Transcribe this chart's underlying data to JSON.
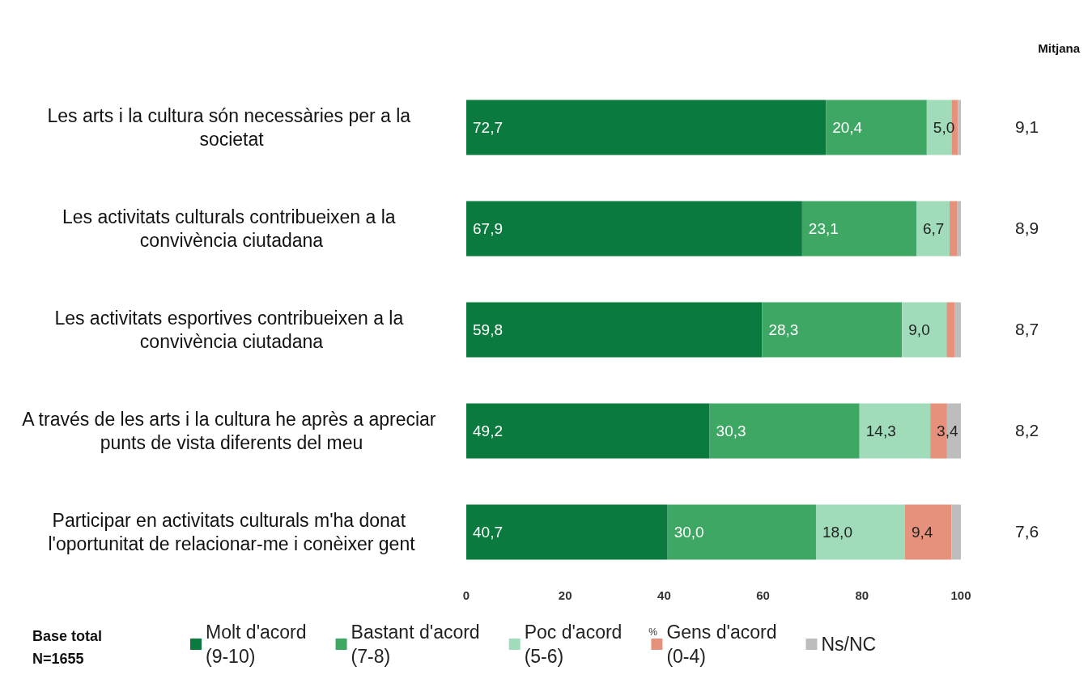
{
  "chart_data": {
    "type": "bar",
    "orientation": "horizontal",
    "stacked": true,
    "categories": [
      "Les arts i la cultura són necessàries per a la societat",
      "Les activitats culturals contribueixen a la convivència ciutadana",
      "Les activitats esportives contribueixen a la convivència ciutadana",
      "A través de les arts i la cultura he après a apreciar punts de vista diferents del meu",
      "Participar en activitats culturals m'ha donat l'oportunitat de relacionar-me i conèixer gent"
    ],
    "series": [
      {
        "name": "Molt d'acord\n(9-10)",
        "color": "#0b7a3f",
        "values": [
          72.7,
          67.9,
          59.8,
          49.2,
          40.7
        ],
        "value_labels": [
          "72,7",
          "67,9",
          "59,8",
          "49,2",
          "40,7"
        ]
      },
      {
        "name": "Bastant d'acord\n(7-8)",
        "color": "#3ea764",
        "values": [
          20.4,
          23.1,
          28.3,
          30.3,
          30.0
        ],
        "value_labels": [
          "20,4",
          "23,1",
          "28,3",
          "30,3",
          "30,0"
        ]
      },
      {
        "name": "Poc d'acord\n(5-6)",
        "color": "#a0dcb9",
        "values": [
          5.0,
          6.7,
          9.0,
          14.3,
          18.0
        ],
        "value_labels": [
          "5,0",
          "6,7",
          "9,0",
          "14,3",
          "18,0"
        ]
      },
      {
        "name": "Gens d'acord\n(0-4)",
        "color": "#e6917b",
        "values": [
          1.3,
          1.6,
          1.7,
          3.4,
          9.4
        ],
        "value_labels": [
          null,
          null,
          null,
          "3,4",
          "9,4"
        ]
      },
      {
        "name": "Ns/NC",
        "color": "#bdbdbd",
        "values": [
          0.6,
          0.7,
          1.2,
          2.8,
          1.9
        ],
        "value_labels": [
          null,
          null,
          null,
          null,
          null
        ]
      }
    ],
    "xlim": [
      0,
      100
    ],
    "xticks": [
      0,
      20,
      40,
      60,
      80,
      100
    ],
    "xlabel": "%",
    "grid": false,
    "legend": "bottom",
    "annotations": [
      "Mitjana",
      "9,1",
      "8,9",
      "8,7",
      "8,2",
      "7,6",
      "Base total\nN=1655"
    ]
  }
}
